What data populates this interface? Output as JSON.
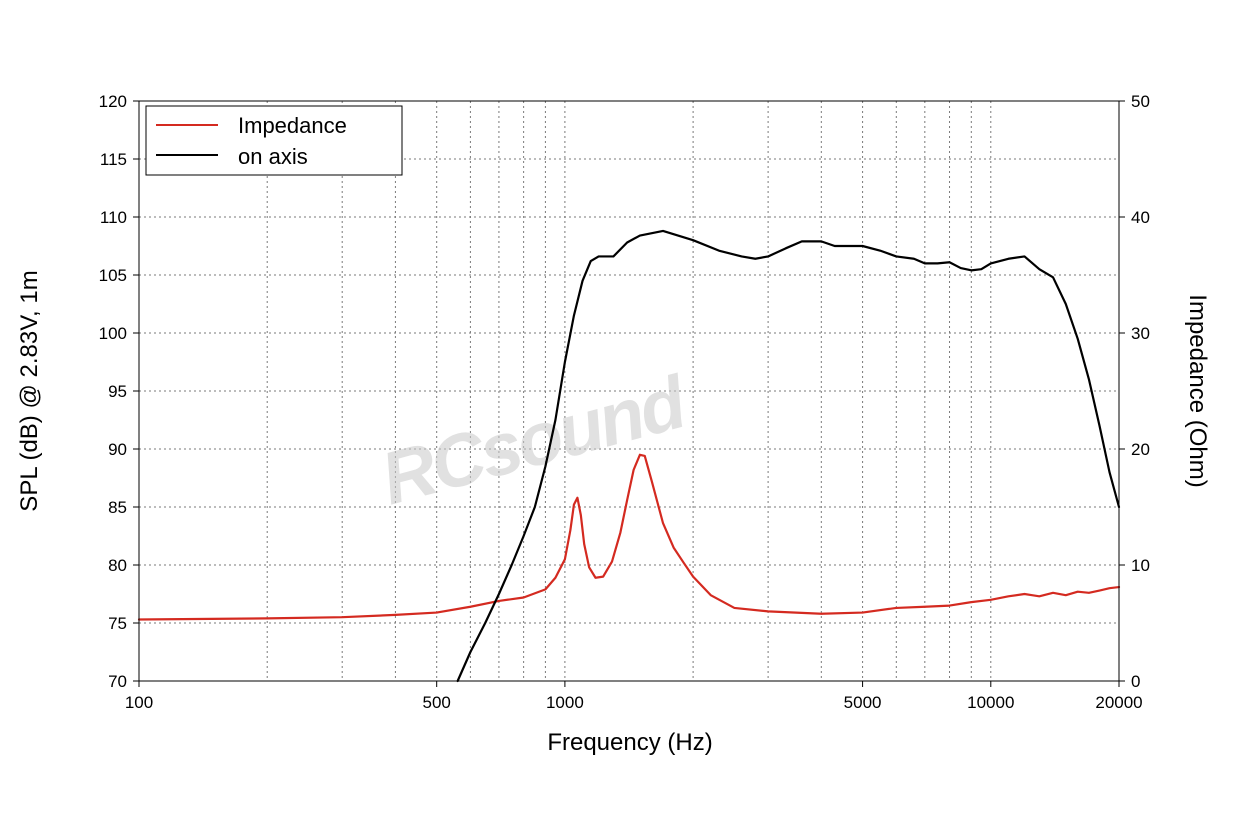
{
  "chart_data": {
    "type": "line",
    "xlabel": "Frequency (Hz)",
    "ylabel": "SPL (dB) @ 2.83V, 1m",
    "y2label": "Impedance (Ohm)",
    "xscale": "log",
    "xlim": [
      100,
      20000
    ],
    "ylim": [
      70,
      120
    ],
    "y2lim": [
      0,
      50
    ],
    "x_ticks": [
      "100",
      "500",
      "1000",
      "5000",
      "10000",
      "20000"
    ],
    "y_ticks": [
      "70",
      "75",
      "80",
      "85",
      "90",
      "95",
      "100",
      "105",
      "110",
      "115",
      "120"
    ],
    "y2_ticks": [
      "0",
      "10",
      "20",
      "30",
      "40",
      "50"
    ],
    "grid": true,
    "legend_position": "top-left",
    "watermark": "RCsound",
    "series": [
      {
        "name": "Impedance",
        "axis": "right",
        "color": "#d42a20",
        "points": [
          [
            100,
            5.3
          ],
          [
            200,
            5.4
          ],
          [
            300,
            5.5
          ],
          [
            400,
            5.7
          ],
          [
            500,
            5.9
          ],
          [
            600,
            6.4
          ],
          [
            700,
            6.9
          ],
          [
            800,
            7.2
          ],
          [
            900,
            7.9
          ],
          [
            950,
            8.9
          ],
          [
            1000,
            10.5
          ],
          [
            1030,
            13.0
          ],
          [
            1050,
            15.2
          ],
          [
            1070,
            15.8
          ],
          [
            1090,
            14.3
          ],
          [
            1110,
            11.8
          ],
          [
            1140,
            9.8
          ],
          [
            1180,
            8.9
          ],
          [
            1230,
            9.0
          ],
          [
            1290,
            10.3
          ],
          [
            1350,
            12.8
          ],
          [
            1400,
            15.6
          ],
          [
            1450,
            18.2
          ],
          [
            1500,
            19.5
          ],
          [
            1540,
            19.4
          ],
          [
            1600,
            17.2
          ],
          [
            1700,
            13.6
          ],
          [
            1800,
            11.5
          ],
          [
            1900,
            10.2
          ],
          [
            2000,
            9.0
          ],
          [
            2200,
            7.4
          ],
          [
            2500,
            6.3
          ],
          [
            3000,
            6.0
          ],
          [
            4000,
            5.8
          ],
          [
            5000,
            5.9
          ],
          [
            6000,
            6.3
          ],
          [
            7000,
            6.4
          ],
          [
            8000,
            6.5
          ],
          [
            9000,
            6.8
          ],
          [
            10000,
            7.0
          ],
          [
            11000,
            7.3
          ],
          [
            12000,
            7.5
          ],
          [
            12500,
            7.4
          ],
          [
            13000,
            7.3
          ],
          [
            14000,
            7.6
          ],
          [
            15000,
            7.4
          ],
          [
            16000,
            7.7
          ],
          [
            17000,
            7.6
          ],
          [
            18000,
            7.8
          ],
          [
            19000,
            8.0
          ],
          [
            20000,
            8.1
          ]
        ]
      },
      {
        "name": "on axis",
        "axis": "left",
        "color": "#000000",
        "points": [
          [
            560,
            70.0
          ],
          [
            600,
            72.5
          ],
          [
            650,
            75.0
          ],
          [
            700,
            77.5
          ],
          [
            750,
            80.0
          ],
          [
            800,
            82.5
          ],
          [
            850,
            85.0
          ],
          [
            900,
            88.5
          ],
          [
            950,
            92.5
          ],
          [
            1000,
            97.5
          ],
          [
            1050,
            101.5
          ],
          [
            1100,
            104.5
          ],
          [
            1150,
            106.2
          ],
          [
            1200,
            106.6
          ],
          [
            1300,
            106.6
          ],
          [
            1400,
            107.8
          ],
          [
            1500,
            108.4
          ],
          [
            1700,
            108.8
          ],
          [
            2000,
            108.0
          ],
          [
            2300,
            107.1
          ],
          [
            2600,
            106.6
          ],
          [
            2800,
            106.4
          ],
          [
            3000,
            106.6
          ],
          [
            3300,
            107.3
          ],
          [
            3600,
            107.9
          ],
          [
            4000,
            107.9
          ],
          [
            4300,
            107.5
          ],
          [
            5000,
            107.5
          ],
          [
            5500,
            107.1
          ],
          [
            6000,
            106.6
          ],
          [
            6600,
            106.4
          ],
          [
            7000,
            106.0
          ],
          [
            7500,
            106.0
          ],
          [
            8000,
            106.1
          ],
          [
            8500,
            105.6
          ],
          [
            9000,
            105.4
          ],
          [
            9500,
            105.5
          ],
          [
            10000,
            106.0
          ],
          [
            11000,
            106.4
          ],
          [
            12000,
            106.6
          ],
          [
            13000,
            105.5
          ],
          [
            14000,
            104.8
          ],
          [
            15000,
            102.5
          ],
          [
            16000,
            99.5
          ],
          [
            17000,
            96.0
          ],
          [
            18000,
            92.0
          ],
          [
            19000,
            88.0
          ],
          [
            20000,
            85.0
          ]
        ]
      }
    ]
  }
}
